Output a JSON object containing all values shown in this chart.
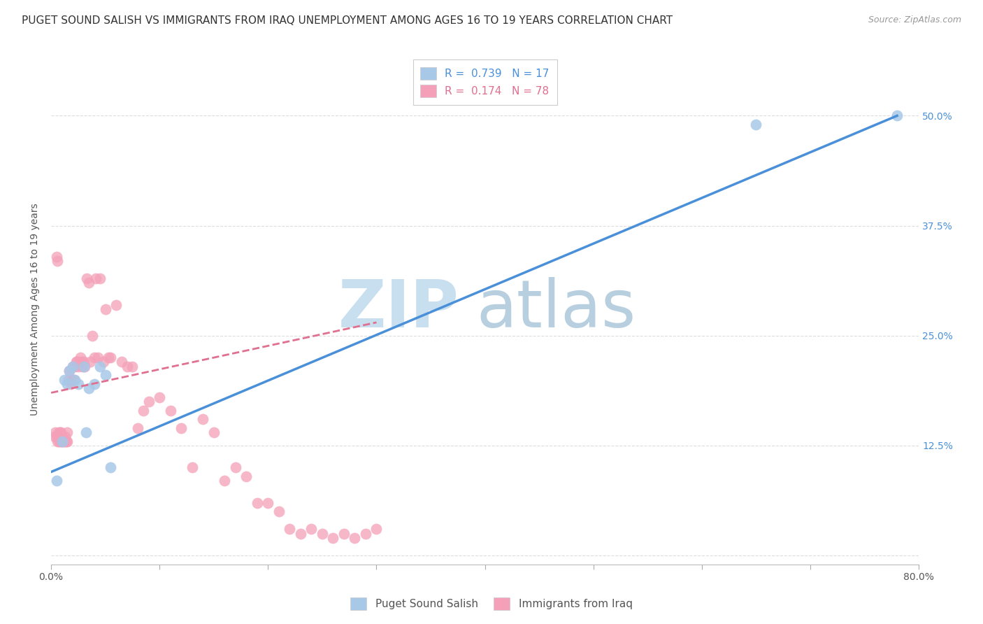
{
  "title": "PUGET SOUND SALISH VS IMMIGRANTS FROM IRAQ UNEMPLOYMENT AMONG AGES 16 TO 19 YEARS CORRELATION CHART",
  "source": "Source: ZipAtlas.com",
  "ylabel": "Unemployment Among Ages 16 to 19 years",
  "xlim": [
    0,
    0.8
  ],
  "ylim": [
    -0.01,
    0.57
  ],
  "xticks": [
    0.0,
    0.1,
    0.2,
    0.3,
    0.4,
    0.5,
    0.6,
    0.7,
    0.8
  ],
  "yticks_right": [
    0.0,
    0.125,
    0.25,
    0.375,
    0.5
  ],
  "ytick_right_labels": [
    "",
    "12.5%",
    "25.0%",
    "37.5%",
    "50.0%"
  ],
  "blue_color": "#a8c8e8",
  "pink_color": "#f4a0b8",
  "blue_line_color": "#4a90d9",
  "pink_line_color": "#e07090",
  "grid_color": "#dddddd",
  "watermark_zip": "ZIP",
  "watermark_atlas": "atlas",
  "legend_R1": "R =  0.739",
  "legend_N1": "N = 17",
  "legend_R2": "R =  0.174",
  "legend_N2": "N = 78",
  "legend_label1": "Puget Sound Salish",
  "legend_label2": "Immigrants from Iraq",
  "blue_scatter_x": [
    0.005,
    0.01,
    0.012,
    0.015,
    0.017,
    0.02,
    0.022,
    0.025,
    0.03,
    0.032,
    0.035,
    0.04,
    0.045,
    0.05,
    0.055,
    0.65,
    0.78
  ],
  "blue_scatter_y": [
    0.085,
    0.13,
    0.2,
    0.195,
    0.21,
    0.215,
    0.2,
    0.195,
    0.215,
    0.14,
    0.19,
    0.195,
    0.215,
    0.205,
    0.1,
    0.49,
    0.5
  ],
  "pink_scatter_x": [
    0.003,
    0.004,
    0.005,
    0.005,
    0.006,
    0.006,
    0.007,
    0.007,
    0.008,
    0.008,
    0.009,
    0.009,
    0.01,
    0.01,
    0.011,
    0.012,
    0.013,
    0.013,
    0.014,
    0.015,
    0.015,
    0.016,
    0.017,
    0.018,
    0.019,
    0.02,
    0.02,
    0.021,
    0.022,
    0.023,
    0.024,
    0.025,
    0.026,
    0.027,
    0.028,
    0.029,
    0.03,
    0.031,
    0.033,
    0.035,
    0.036,
    0.038,
    0.04,
    0.041,
    0.043,
    0.045,
    0.048,
    0.05,
    0.053,
    0.055,
    0.06,
    0.065,
    0.07,
    0.075,
    0.08,
    0.085,
    0.09,
    0.1,
    0.11,
    0.12,
    0.13,
    0.14,
    0.15,
    0.16,
    0.17,
    0.18,
    0.19,
    0.2,
    0.21,
    0.22,
    0.23,
    0.24,
    0.25,
    0.26,
    0.27,
    0.28,
    0.29,
    0.3
  ],
  "pink_scatter_y": [
    0.135,
    0.14,
    0.135,
    0.34,
    0.13,
    0.335,
    0.13,
    0.14,
    0.13,
    0.14,
    0.13,
    0.14,
    0.13,
    0.135,
    0.13,
    0.13,
    0.13,
    0.135,
    0.13,
    0.13,
    0.14,
    0.2,
    0.21,
    0.195,
    0.2,
    0.2,
    0.215,
    0.2,
    0.215,
    0.22,
    0.22,
    0.215,
    0.22,
    0.225,
    0.22,
    0.215,
    0.22,
    0.215,
    0.315,
    0.31,
    0.22,
    0.25,
    0.225,
    0.315,
    0.225,
    0.315,
    0.22,
    0.28,
    0.225,
    0.225,
    0.285,
    0.22,
    0.215,
    0.215,
    0.145,
    0.165,
    0.175,
    0.18,
    0.165,
    0.145,
    0.1,
    0.155,
    0.14,
    0.085,
    0.1,
    0.09,
    0.06,
    0.06,
    0.05,
    0.03,
    0.025,
    0.03,
    0.025,
    0.02,
    0.025,
    0.02,
    0.025,
    0.03
  ],
  "blue_trend_x": [
    0.0,
    0.78
  ],
  "blue_trend_y": [
    0.095,
    0.5
  ],
  "pink_trend_x": [
    0.0,
    0.3
  ],
  "pink_trend_y": [
    0.185,
    0.265
  ],
  "title_fontsize": 11,
  "source_fontsize": 9,
  "tick_fontsize": 10,
  "legend_fontsize": 11,
  "watermark_fontsize_zip": 68,
  "watermark_fontsize_atlas": 68,
  "watermark_color_zip": "#c8dff0",
  "watermark_color_atlas": "#b8cfe0",
  "background_color": "#ffffff"
}
